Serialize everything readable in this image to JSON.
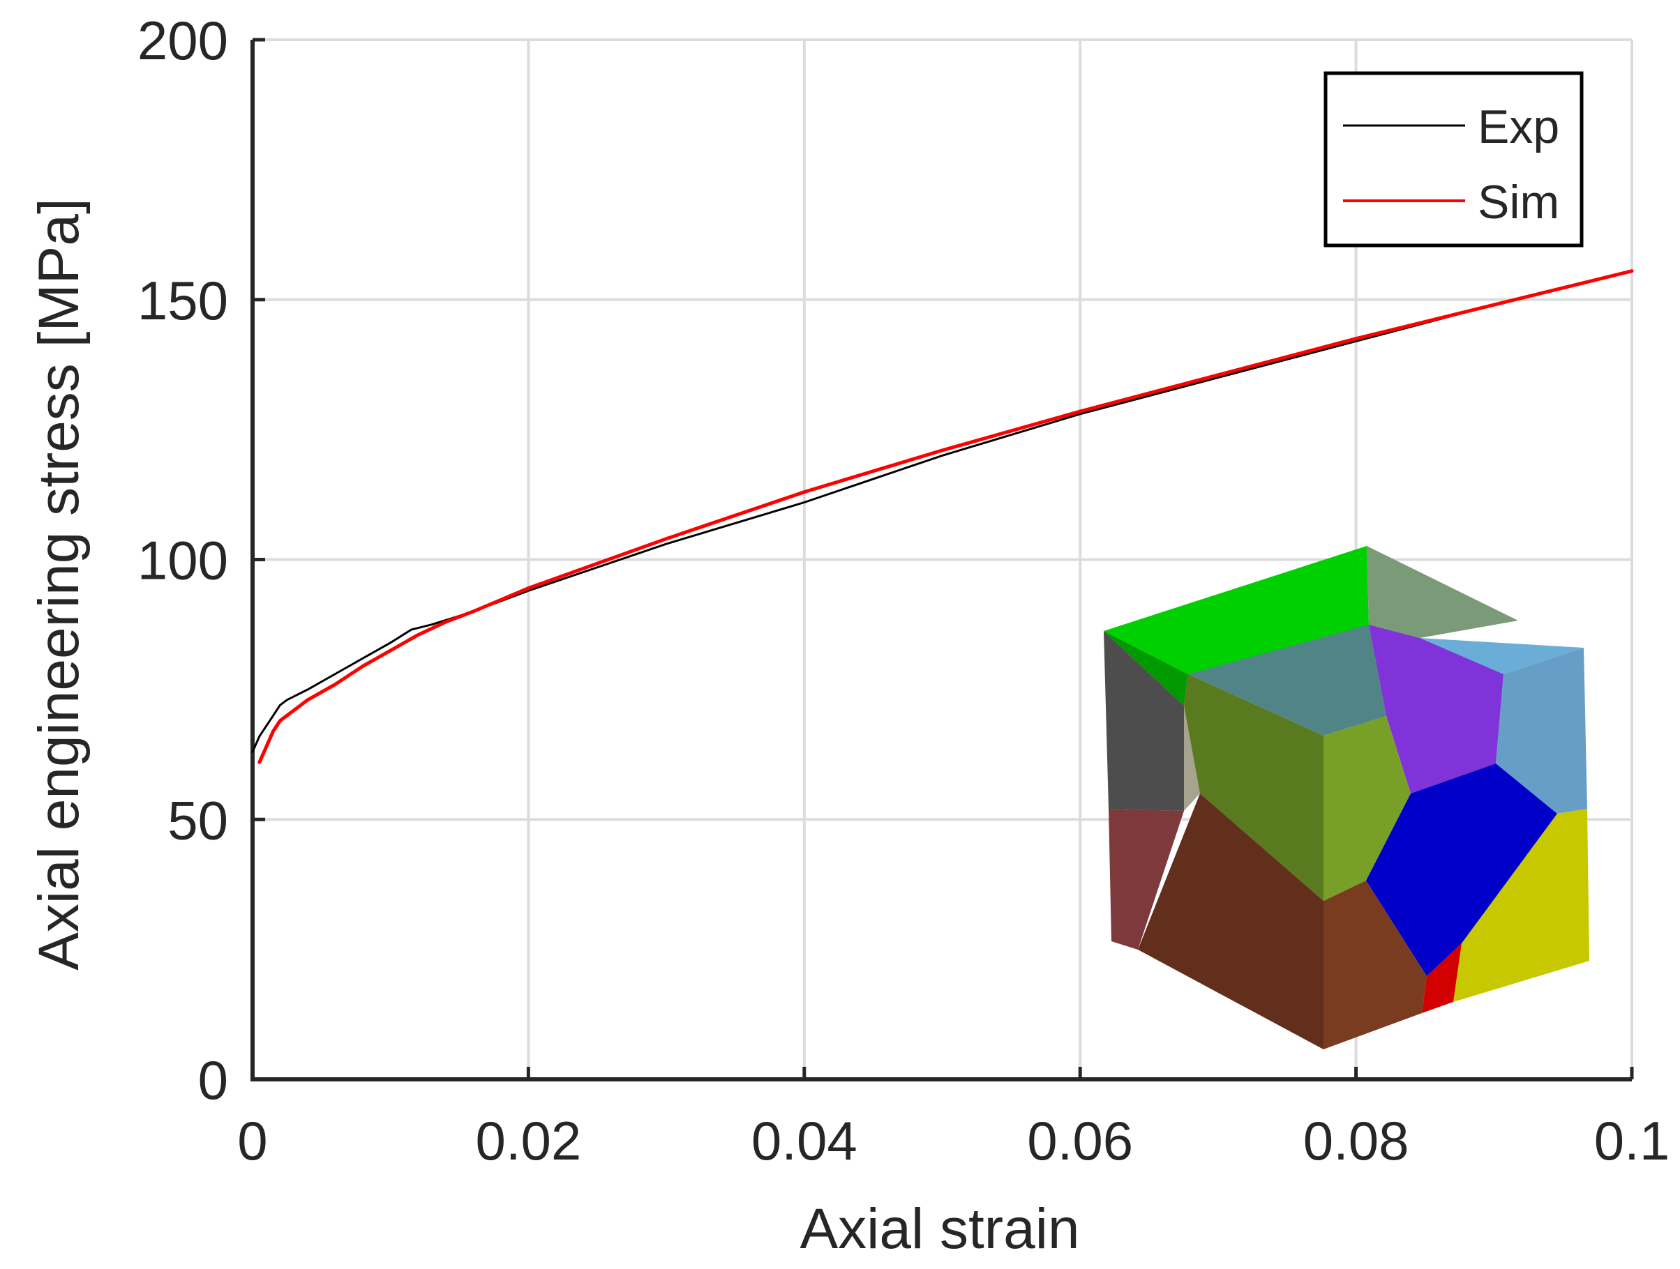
{
  "chart_data": {
    "type": "line",
    "title": "",
    "xlabel": "Axial strain",
    "ylabel": "Axial engineering stress [MPa]",
    "xlim": [
      0,
      0.1
    ],
    "ylim": [
      0,
      200
    ],
    "xticks": [
      0,
      0.02,
      0.04,
      0.06,
      0.08,
      0.1
    ],
    "xtick_labels": [
      "0",
      "0.02",
      "0.04",
      "0.06",
      "0.08",
      "0.1"
    ],
    "yticks": [
      0,
      50,
      100,
      150,
      200
    ],
    "ytick_labels": [
      "0",
      "50",
      "100",
      "150",
      "200"
    ],
    "grid": true,
    "legend_position": "top-right",
    "series": [
      {
        "name": "Exp",
        "color": "#000000",
        "x": [
          0.0,
          0.0005,
          0.001,
          0.002,
          0.0025,
          0.004,
          0.006,
          0.008,
          0.01,
          0.0115,
          0.013,
          0.016,
          0.02,
          0.03,
          0.04,
          0.05,
          0.06,
          0.07,
          0.08,
          0.09,
          0.1
        ],
        "y": [
          63,
          66,
          68,
          72,
          73,
          75,
          78,
          81,
          84,
          86.5,
          87.5,
          90,
          94,
          103,
          111,
          120,
          128,
          135,
          142,
          149,
          155.5
        ]
      },
      {
        "name": "Sim",
        "color": "#ff0000",
        "x": [
          0.0005,
          0.001,
          0.0015,
          0.002,
          0.003,
          0.004,
          0.006,
          0.008,
          0.01,
          0.012,
          0.014,
          0.016,
          0.02,
          0.03,
          0.04,
          0.05,
          0.06,
          0.07,
          0.08,
          0.09,
          0.1
        ],
        "y": [
          61,
          64,
          67,
          69,
          71,
          73,
          76,
          79.5,
          82.5,
          85.5,
          88,
          90,
          94.5,
          104,
          113,
          121,
          128.5,
          135.5,
          142.5,
          149,
          155.5
        ]
      }
    ],
    "inset": {
      "type": "image",
      "icon": "polycrystal-cube-icon"
    }
  }
}
